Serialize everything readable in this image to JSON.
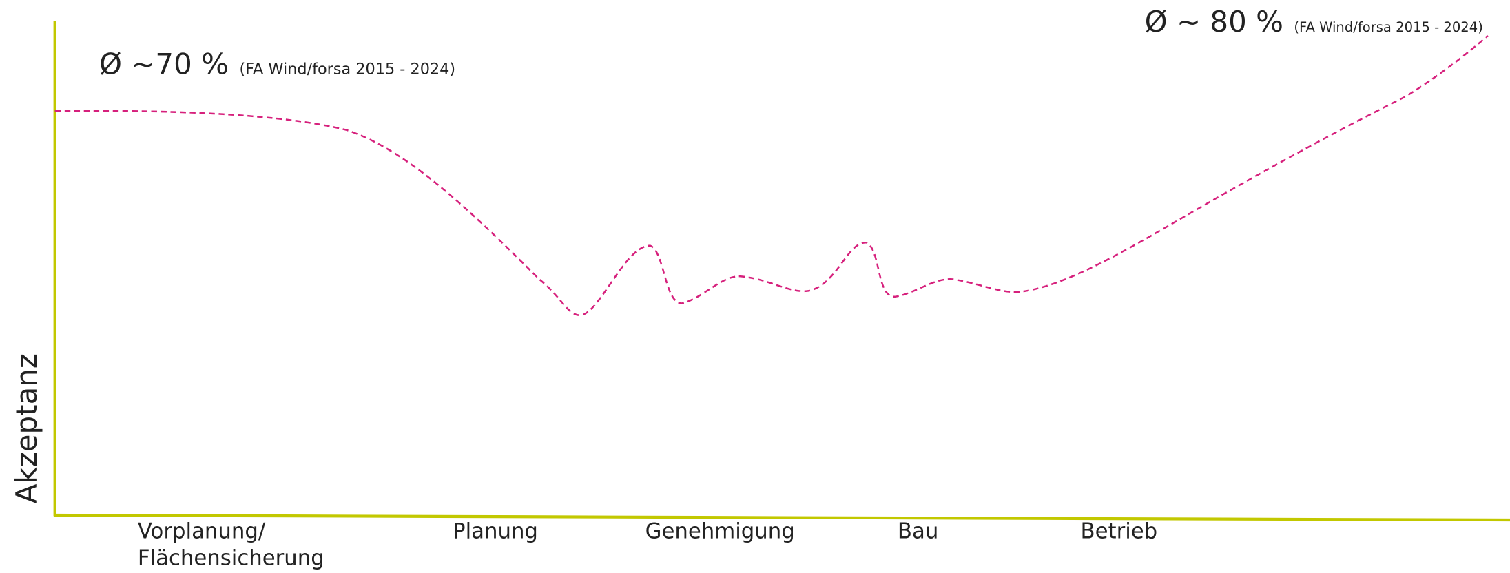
{
  "y_axis_label": "Akzeptanz",
  "annotations": [
    {
      "average": "Ø ~70 %",
      "source": "(FA Wind/forsa 2015 - 2024)"
    },
    {
      "average": "Ø ~ 80 %",
      "source": "(FA Wind/forsa 2015 - 2024)"
    }
  ],
  "phases": [
    [
      "Vorplanung/",
      "Flächensicherung"
    ],
    [
      "Planung"
    ],
    [
      "Genehmigung"
    ],
    [
      "Bau"
    ],
    [
      "Betrieb"
    ]
  ]
}
